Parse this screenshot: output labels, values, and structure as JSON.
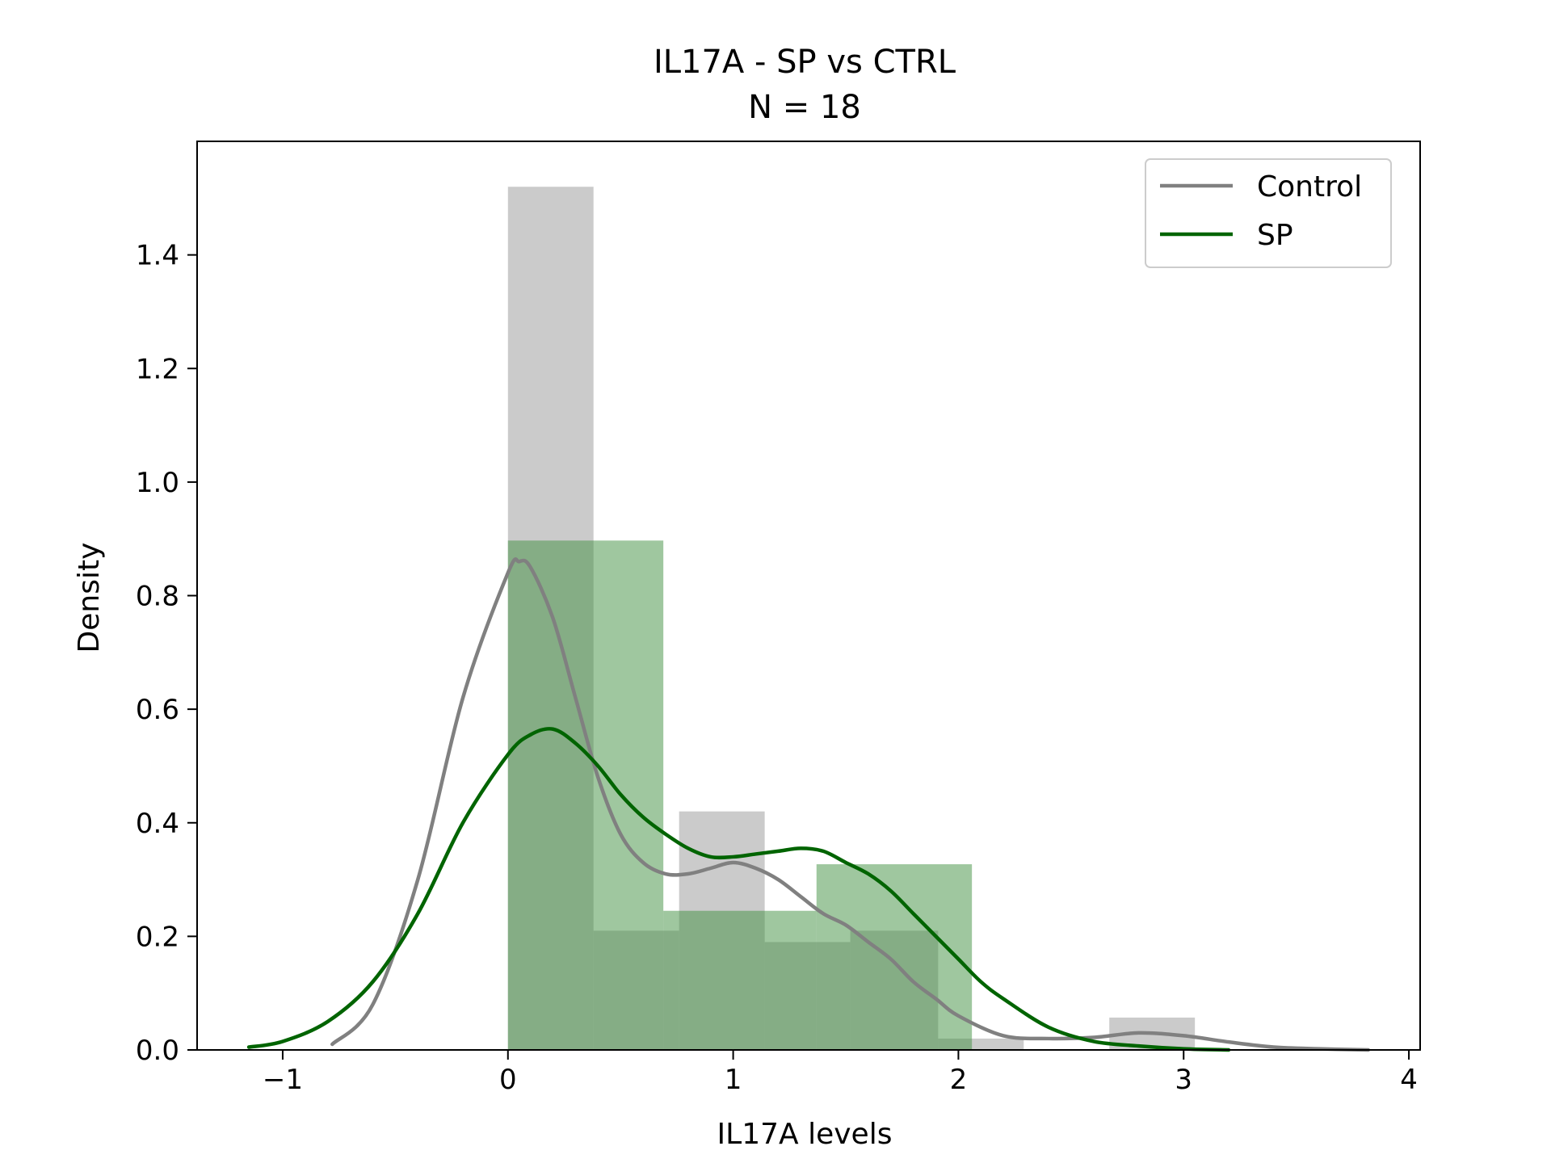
{
  "chart_data": {
    "type": "histogram",
    "title": "IL17A - SP vs CTRL",
    "subtitle": "N = 18",
    "xlabel": "IL17A levels",
    "ylabel": "Density",
    "xlim": [
      -1.38,
      4.05
    ],
    "ylim": [
      0,
      1.6
    ],
    "xticks": [
      -1,
      0,
      1,
      2,
      3,
      4
    ],
    "xtick_labels": [
      "−1",
      "0",
      "1",
      "2",
      "3",
      "4"
    ],
    "yticks": [
      0.0,
      0.2,
      0.4,
      0.6,
      0.8,
      1.0,
      1.2,
      1.4
    ],
    "ytick_labels": [
      "0.0",
      "0.2",
      "0.4",
      "0.6",
      "0.8",
      "1.0",
      "1.2",
      "1.4"
    ],
    "legend_position": "top-right",
    "grid": false,
    "series": [
      {
        "name": "Control",
        "line_color": "#808080",
        "bar_color": "#a9a9a9",
        "bins": [
          {
            "x0": 0.0,
            "x1": 0.38,
            "density": 1.52
          },
          {
            "x0": 0.38,
            "x1": 0.76,
            "density": 0.21
          },
          {
            "x0": 0.76,
            "x1": 1.14,
            "density": 0.42
          },
          {
            "x0": 1.14,
            "x1": 1.52,
            "density": 0.19
          },
          {
            "x0": 1.52,
            "x1": 1.91,
            "density": 0.21
          },
          {
            "x0": 1.91,
            "x1": 2.29,
            "density": 0.02
          },
          {
            "x0": 2.29,
            "x1": 2.67,
            "density": 0.0
          },
          {
            "x0": 2.67,
            "x1": 3.05,
            "density": 0.057
          }
        ],
        "kde": {
          "x": [
            -0.78,
            -0.6,
            -0.4,
            -0.2,
            0.0,
            0.05,
            0.1,
            0.2,
            0.3,
            0.4,
            0.5,
            0.6,
            0.7,
            0.8,
            0.9,
            1.0,
            1.1,
            1.2,
            1.3,
            1.4,
            1.5,
            1.6,
            1.7,
            1.8,
            1.9,
            2.0,
            2.2,
            2.4,
            2.6,
            2.8,
            3.0,
            3.2,
            3.4,
            3.6,
            3.82
          ],
          "y": [
            0.01,
            0.08,
            0.3,
            0.62,
            0.84,
            0.86,
            0.85,
            0.76,
            0.62,
            0.48,
            0.38,
            0.33,
            0.31,
            0.31,
            0.32,
            0.33,
            0.32,
            0.3,
            0.27,
            0.24,
            0.22,
            0.19,
            0.16,
            0.12,
            0.09,
            0.06,
            0.025,
            0.02,
            0.022,
            0.03,
            0.025,
            0.014,
            0.005,
            0.002,
            0.0
          ]
        }
      },
      {
        "name": "SP",
        "line_color": "#006400",
        "bar_color": "#3f8f3f",
        "bins": [
          {
            "x0": 0.0,
            "x1": 0.69,
            "density": 0.897
          },
          {
            "x0": 0.69,
            "x1": 1.37,
            "density": 0.245
          },
          {
            "x0": 1.37,
            "x1": 2.06,
            "density": 0.327
          }
        ],
        "kde": {
          "x": [
            -1.15,
            -1.0,
            -0.8,
            -0.6,
            -0.4,
            -0.2,
            0.0,
            0.1,
            0.2,
            0.3,
            0.4,
            0.5,
            0.6,
            0.7,
            0.8,
            0.9,
            1.0,
            1.1,
            1.2,
            1.3,
            1.4,
            1.5,
            1.6,
            1.7,
            1.8,
            1.9,
            2.0,
            2.1,
            2.2,
            2.4,
            2.6,
            2.8,
            3.0,
            3.2
          ],
          "y": [
            0.005,
            0.015,
            0.05,
            0.12,
            0.24,
            0.4,
            0.52,
            0.555,
            0.565,
            0.54,
            0.5,
            0.45,
            0.41,
            0.38,
            0.355,
            0.34,
            0.34,
            0.345,
            0.35,
            0.355,
            0.35,
            0.33,
            0.31,
            0.28,
            0.24,
            0.2,
            0.16,
            0.12,
            0.09,
            0.04,
            0.015,
            0.007,
            0.002,
            0.0
          ]
        }
      }
    ]
  }
}
